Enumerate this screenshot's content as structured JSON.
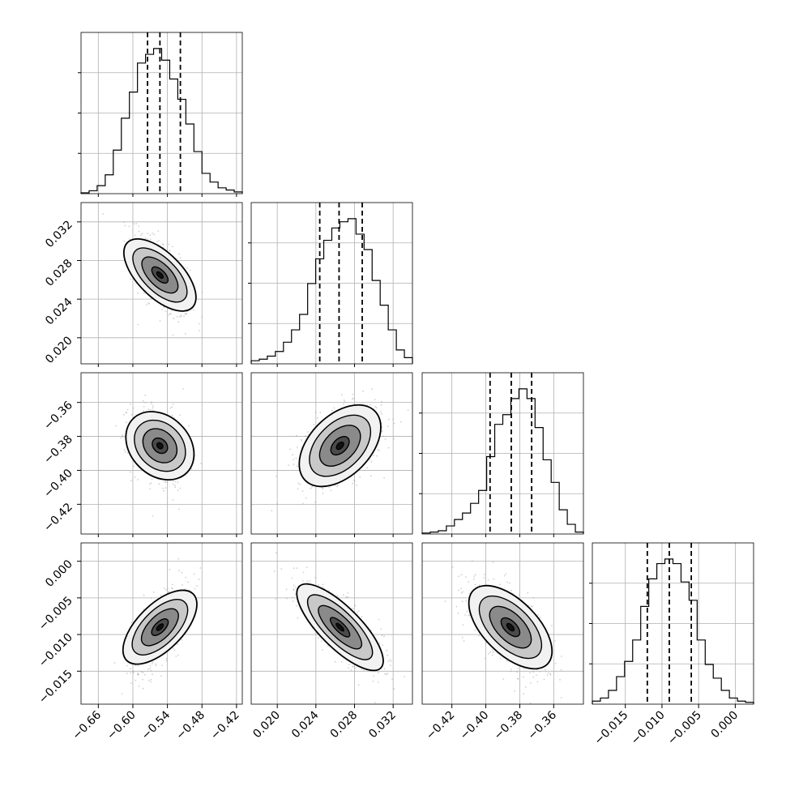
{
  "colors": {
    "background": "#ffffff",
    "ink": "#000000",
    "grid": "#b0b0b0",
    "scatter": "#aaaaaa"
  },
  "chart_data": {
    "type": "corner",
    "grid": true,
    "variables": [
      {
        "range": [
          -0.69,
          -0.41
        ],
        "ticks": [
          -0.66,
          -0.6,
          -0.54,
          -0.48,
          -0.42
        ],
        "tick_labels": [
          "−0.66",
          "−0.60",
          "−0.54",
          "−0.48",
          "−0.42"
        ],
        "quantiles": [
          -0.5745,
          -0.553,
          -0.5175
        ],
        "mean": -0.553,
        "sd": 0.0245,
        "hist_counts": [
          0.006,
          0.02,
          0.055,
          0.13,
          0.3,
          0.52,
          0.7,
          0.9,
          0.96,
          1.0,
          0.92,
          0.79,
          0.65,
          0.48,
          0.29,
          0.14,
          0.08,
          0.04,
          0.025,
          0.012
        ]
      },
      {
        "range": [
          0.0173,
          0.034
        ],
        "ticks": [
          0.02,
          0.024,
          0.028,
          0.032
        ],
        "tick_labels": [
          "0.020",
          "0.024",
          "0.028",
          "0.032"
        ],
        "quantiles": [
          0.0244,
          0.0264,
          0.0288
        ],
        "mean": 0.0265,
        "sd": 0.0022,
        "hist_counts": [
          0.02,
          0.03,
          0.05,
          0.08,
          0.14,
          0.22,
          0.32,
          0.52,
          0.68,
          0.8,
          0.88,
          0.92,
          0.94,
          0.84,
          0.74,
          0.54,
          0.38,
          0.22,
          0.09,
          0.04
        ]
      },
      {
        "range": [
          -0.4375,
          -0.3425
        ],
        "ticks": [
          -0.42,
          -0.4,
          -0.38,
          -0.36
        ],
        "tick_labels": [
          "−0.42",
          "−0.40",
          "−0.38",
          "−0.36"
        ],
        "quantiles": [
          -0.3975,
          -0.385,
          -0.373
        ],
        "mean": -0.3855,
        "sd": 0.0115,
        "hist_counts": [
          0.006,
          0.012,
          0.02,
          0.05,
          0.09,
          0.13,
          0.19,
          0.27,
          0.48,
          0.68,
          0.74,
          0.84,
          0.9,
          0.84,
          0.66,
          0.46,
          0.32,
          0.15,
          0.06,
          0.012
        ]
      },
      {
        "range": [
          -0.0195,
          0.0025
        ],
        "ticks": [
          -0.015,
          -0.01,
          -0.005,
          0.0
        ],
        "tick_labels": [
          "−0.015",
          "−0.010",
          "−0.005",
          "0.000"
        ],
        "quantiles": [
          -0.012,
          -0.009,
          -0.006
        ],
        "mean": -0.009,
        "sd": 0.003,
        "hist_counts": [
          0.02,
          0.04,
          0.09,
          0.18,
          0.28,
          0.42,
          0.64,
          0.82,
          0.92,
          0.95,
          0.92,
          0.8,
          0.68,
          0.42,
          0.26,
          0.17,
          0.09,
          0.04,
          0.02,
          0.012
        ]
      }
    ],
    "correlations": [
      {
        "i": 1,
        "j": 0,
        "rho": -0.62
      },
      {
        "i": 2,
        "j": 0,
        "rho": -0.25
      },
      {
        "i": 2,
        "j": 1,
        "rho": 0.45
      },
      {
        "i": 3,
        "j": 0,
        "rho": 0.62
      },
      {
        "i": 3,
        "j": 1,
        "rho": -0.78
      },
      {
        "i": 3,
        "j": 2,
        "rho": -0.58
      }
    ]
  }
}
